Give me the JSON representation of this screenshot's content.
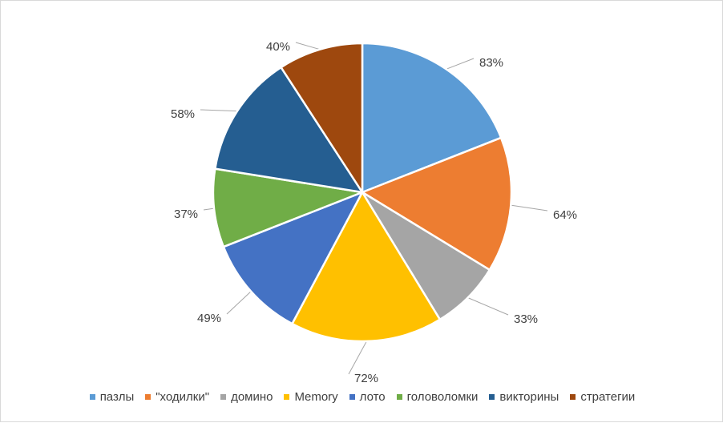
{
  "chart_data": {
    "type": "pie",
    "categories": [
      "пазлы",
      "\"ходилки\"",
      "домино",
      "Memory",
      "лото",
      "головоломки",
      "викторины",
      "стратегии"
    ],
    "values": [
      83,
      64,
      33,
      72,
      49,
      37,
      58,
      40
    ],
    "labels": [
      "83%",
      "64%",
      "33%",
      "72%",
      "49%",
      "37%",
      "58%",
      "40%"
    ],
    "colors": [
      "#5B9BD5",
      "#ED7D31",
      "#A5A5A5",
      "#FFC000",
      "#4472C4",
      "#70AD47",
      "#255E91",
      "#9E480E"
    ],
    "legend_position": "bottom",
    "title": ""
  }
}
